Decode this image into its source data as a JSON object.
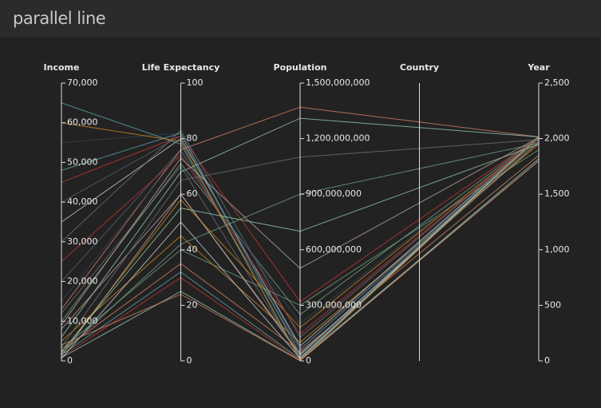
{
  "header": {
    "title": "parallel line"
  },
  "chart_data": {
    "type": "parallel",
    "axes": [
      {
        "name": "Income",
        "ylim": [
          0,
          70000
        ],
        "yticks": [
          0,
          {
            "value": 10000,
            "label": "10,000"
          },
          {
            "value": 20000,
            "label": "20,000"
          },
          {
            "value": 30000,
            "label": "30,000"
          },
          {
            "value": 40000,
            "label": "40,000"
          },
          {
            "value": 50000,
            "label": "50,000"
          },
          {
            "value": 60000,
            "label": "60,000"
          },
          {
            "value": 70000,
            "label": "70,000"
          }
        ]
      },
      {
        "name": "Life Expectancy",
        "ylim": [
          0,
          100
        ],
        "yticks": [
          0,
          20,
          40,
          60,
          80,
          100
        ]
      },
      {
        "name": "Population",
        "ylim": [
          0,
          1500000000
        ],
        "yticks": [
          0,
          {
            "value": 300000000,
            "label": "300,000,000"
          },
          {
            "value": 600000000,
            "label": "600,000,000"
          },
          {
            "value": 900000000,
            "label": "900,000,000"
          },
          {
            "value": 1200000000,
            "label": "1,200,000,000"
          },
          {
            "value": 1500000000,
            "label": "1,500,000,000"
          }
        ]
      },
      {
        "name": "Country"
      },
      {
        "name": "Year",
        "ylim": [
          0,
          2500
        ],
        "yticks": [
          0,
          500,
          {
            "value": 1000,
            "label": "1,000"
          },
          {
            "value": 1500,
            "label": "1,500"
          },
          {
            "value": 2000,
            "label": "2,000"
          },
          {
            "value": 2500,
            "label": "2,500"
          }
        ]
      }
    ],
    "series": [
      {
        "color": "#c23531",
        "values": [
          1000,
          30,
          3000000,
          1800
        ]
      },
      {
        "color": "#61a0a8",
        "values": [
          1500,
          32,
          10000000,
          1800
        ]
      },
      {
        "color": "#d48265",
        "values": [
          2500,
          35,
          50000000,
          1850
        ]
      },
      {
        "color": "#91c7ae",
        "values": [
          800,
          25,
          2000000,
          1820
        ]
      },
      {
        "color": "#749f83",
        "values": [
          3000,
          40,
          300000000,
          1900
        ]
      },
      {
        "color": "#ca8622",
        "values": [
          5000,
          45,
          100000000,
          1950
        ]
      },
      {
        "color": "#bda29a",
        "values": [
          8000,
          60,
          40000000,
          1970
        ]
      },
      {
        "color": "#6e7074",
        "values": [
          12000,
          70,
          20000000,
          1990
        ]
      },
      {
        "color": "#546570",
        "values": [
          20000,
          76,
          60000000,
          2000
        ]
      },
      {
        "color": "#c4ccd3",
        "values": [
          35000,
          80,
          80000000,
          2015
        ]
      },
      {
        "color": "#c23531",
        "values": [
          45000,
          81,
          320000000,
          2015
        ]
      },
      {
        "color": "#2f4554",
        "values": [
          55000,
          82,
          5000000,
          2015
        ]
      },
      {
        "color": "#61a0a8",
        "values": [
          65000,
          78,
          9000000,
          2015
        ]
      },
      {
        "color": "#d48265",
        "values": [
          13000,
          76,
          1370000000,
          2015
        ]
      },
      {
        "color": "#91c7ae",
        "values": [
          6000,
          68,
          1310000000,
          2015
        ]
      },
      {
        "color": "#749f83",
        "values": [
          10000,
          71,
          250000000,
          2015
        ]
      },
      {
        "color": "#ca8622",
        "values": [
          2000,
          58,
          180000000,
          2015
        ]
      },
      {
        "color": "#bda29a",
        "values": [
          1200,
          60,
          30000000,
          2015
        ]
      },
      {
        "color": "#6e7074",
        "values": [
          30000,
          83,
          127000000,
          2015
        ]
      },
      {
        "color": "#546570",
        "values": [
          40000,
          81,
          65000000,
          2015
        ]
      },
      {
        "color": "#c4ccd3",
        "values": [
          600,
          50,
          15000000,
          2015
        ]
      },
      {
        "color": "#c23531",
        "values": [
          25000,
          74,
          145000000,
          2015
        ]
      },
      {
        "color": "#2f4554",
        "values": [
          15000,
          75,
          200000000,
          2015
        ]
      },
      {
        "color": "#61a0a8",
        "values": [
          48000,
          82,
          35000000,
          2015
        ]
      },
      {
        "color": "#d48265",
        "values": [
          4000,
          24,
          1000000,
          1800
        ]
      },
      {
        "color": "#91c7ae",
        "values": [
          2200,
          55,
          700000000,
          1950
        ]
      },
      {
        "color": "#749f83",
        "values": [
          1800,
          42,
          900000000,
          1960
        ]
      },
      {
        "color": "#ca8622",
        "values": [
          60000,
          79,
          3000000,
          2015
        ]
      },
      {
        "color": "#bda29a",
        "values": [
          9000,
          73,
          500000000,
          2010
        ]
      },
      {
        "color": "#6e7074",
        "values": [
          3500,
          65,
          1100000000,
          1990
        ]
      }
    ]
  }
}
